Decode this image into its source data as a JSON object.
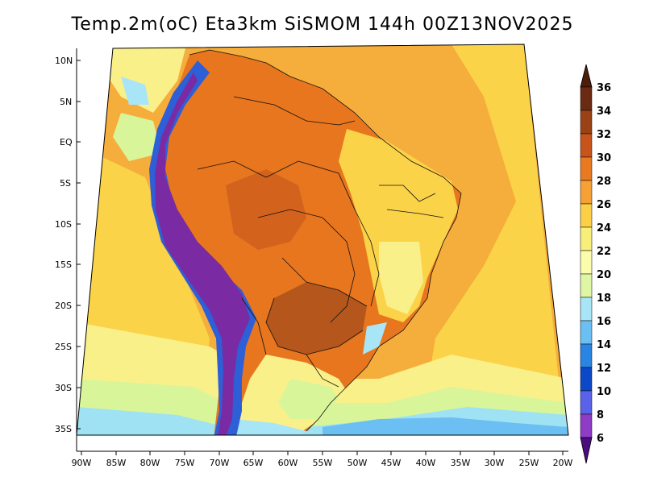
{
  "title": "Temp.2m(oC) Eta3km SiSMOM 144h 00Z13NOV2025",
  "colors": {
    "ocean_warm": "#f5ad3c",
    "ocean_mid": "#fbd348",
    "ocean_light": "#faf08a",
    "ocean_green": "#d9f59a",
    "ocean_cyan": "#9ee2f4",
    "land_hot": "#e7761f",
    "land_very_hot": "#b5561c",
    "andes_purple": "#7a2aa2",
    "andes_blue": "#2e5fd6"
  },
  "map": {
    "lat_labels": [
      "10N",
      "5N",
      "EQ",
      "5S",
      "10S",
      "15S",
      "20S",
      "25S",
      "30S",
      "35S"
    ],
    "lon_labels": [
      "90W",
      "85W",
      "80W",
      "75W",
      "70W",
      "65W",
      "60W",
      "55W",
      "50W",
      "45W",
      "40W",
      "35W",
      "30W",
      "25W",
      "20W"
    ]
  },
  "colorbar": {
    "labels": [
      "36",
      "34",
      "32",
      "30",
      "28",
      "26",
      "24",
      "22",
      "20",
      "18",
      "16",
      "14",
      "12",
      "10",
      "8",
      "6"
    ],
    "colors": [
      "#6b2a14",
      "#9a4216",
      "#c7551b",
      "#ea7a22",
      "#f5a136",
      "#fbd046",
      "#f8ee7a",
      "#fbfcac",
      "#dff7a5",
      "#a8e6f7",
      "#6cbff2",
      "#2a84e2",
      "#0b49c9",
      "#0e1ca7",
      "#5a62ea",
      "#8e3cc6",
      "#7a1a9c",
      "#4b0e7e"
    ]
  }
}
